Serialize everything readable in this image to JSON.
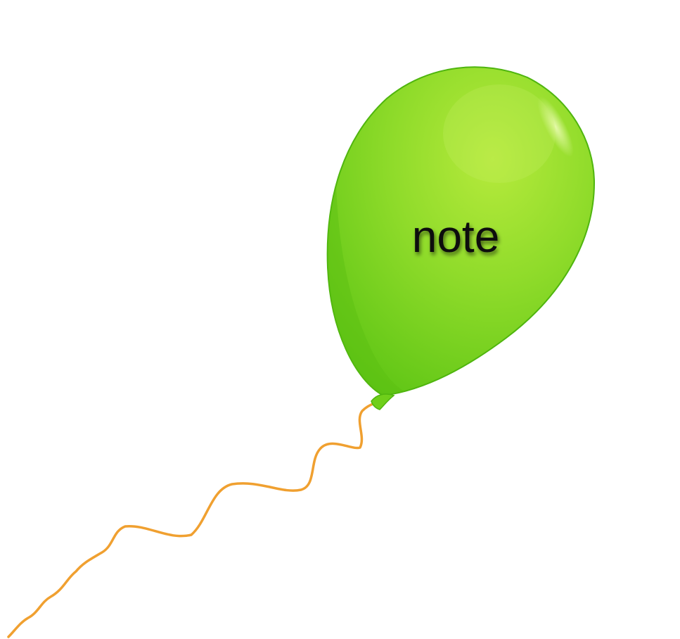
{
  "balloon": {
    "label": "note",
    "color": "#7ed321",
    "highlight_color": "#c5f06a",
    "shadow_color": "#5bb80f",
    "string_color": "#f0a030"
  }
}
